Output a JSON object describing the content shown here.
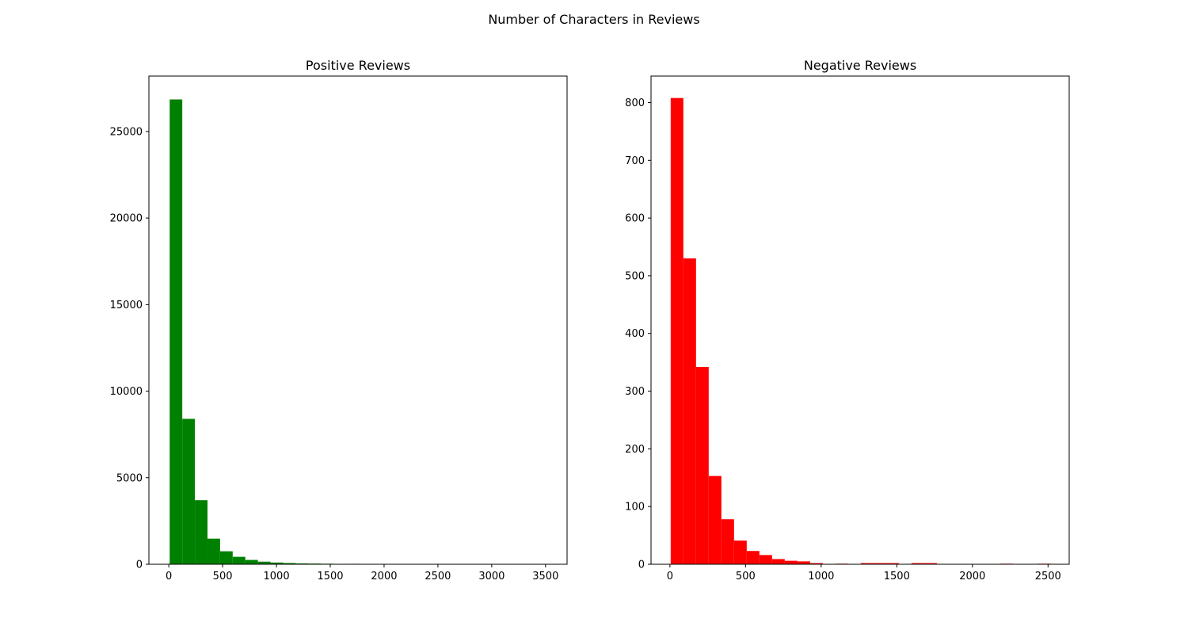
{
  "figure": {
    "suptitle": "Number of Characters in Reviews"
  },
  "chart_data": [
    {
      "type": "bar",
      "histogram": true,
      "title": "Positive Reviews",
      "xlabel": "",
      "ylabel": "",
      "xlim": [
        -185,
        3700
      ],
      "ylim": [
        0,
        28200
      ],
      "xticks": [
        0,
        500,
        1000,
        1500,
        2000,
        2500,
        3000,
        3500
      ],
      "yticks": [
        0,
        5000,
        10000,
        15000,
        20000,
        25000
      ],
      "grid": false,
      "legend": "none",
      "color": "#008000",
      "bin_start": 8,
      "bin_width": 117.1,
      "values": [
        26850,
        8400,
        3700,
        1480,
        750,
        430,
        250,
        150,
        100,
        70,
        50,
        40,
        30,
        0,
        25,
        0,
        0,
        0,
        0,
        0,
        0,
        0,
        0,
        0,
        0,
        0,
        0,
        0,
        0,
        8
      ]
    },
    {
      "type": "bar",
      "histogram": true,
      "title": "Negative Reviews",
      "xlabel": "",
      "ylabel": "",
      "xlim": [
        -125,
        2640
      ],
      "ylim": [
        0,
        846
      ],
      "xticks": [
        0,
        500,
        1000,
        1500,
        2000,
        2500
      ],
      "yticks": [
        0,
        100,
        200,
        300,
        400,
        500,
        600,
        700,
        800
      ],
      "grid": false,
      "legend": "none",
      "color": "#ff0000",
      "bin_start": 5,
      "bin_width": 83.8,
      "values": [
        808,
        530,
        342,
        153,
        78,
        41,
        23,
        16,
        9,
        6,
        5,
        2,
        0,
        1,
        0,
        2,
        2,
        2,
        0,
        2,
        2,
        0,
        0,
        0,
        0,
        0,
        1,
        0,
        0,
        1
      ]
    }
  ]
}
